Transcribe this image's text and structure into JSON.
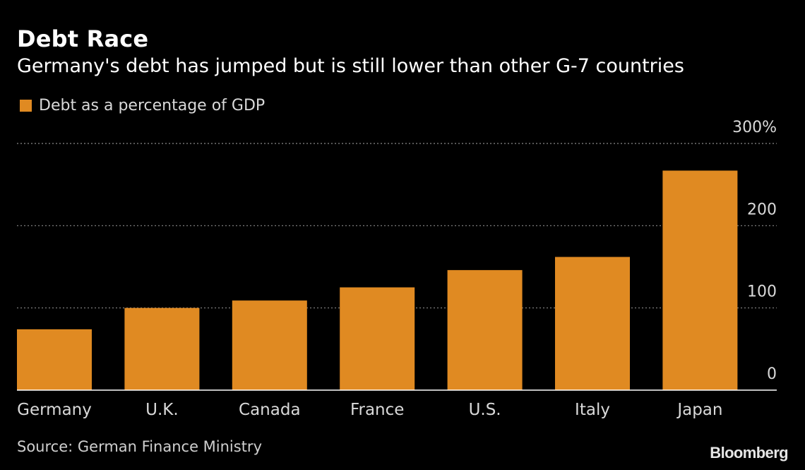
{
  "header": {
    "title": "Debt Race",
    "subtitle": "Germany's debt has jumped but is still lower than other G-7 countries"
  },
  "legend": {
    "label": "Debt as a percentage of GDP"
  },
  "footer": {
    "source": "Source: German Finance Ministry",
    "logo": "Bloomberg"
  },
  "colors": {
    "bar": "#e08a22",
    "background": "#000000",
    "grid": "#8a8a8a"
  },
  "chart_data": {
    "type": "bar",
    "categories": [
      "Germany",
      "U.K.",
      "Canada",
      "France",
      "U.S.",
      "Italy",
      "Japan"
    ],
    "series": [
      {
        "name": "Debt as a percentage of GDP",
        "values": [
          74,
          100,
          109,
          125,
          146,
          162,
          267
        ]
      }
    ],
    "ylim": [
      0,
      300
    ],
    "yticks": [
      0,
      100,
      200,
      300
    ],
    "ytick_labels": [
      "0",
      "100",
      "200",
      "300%"
    ],
    "grid": true,
    "legend_position": "top-left"
  }
}
